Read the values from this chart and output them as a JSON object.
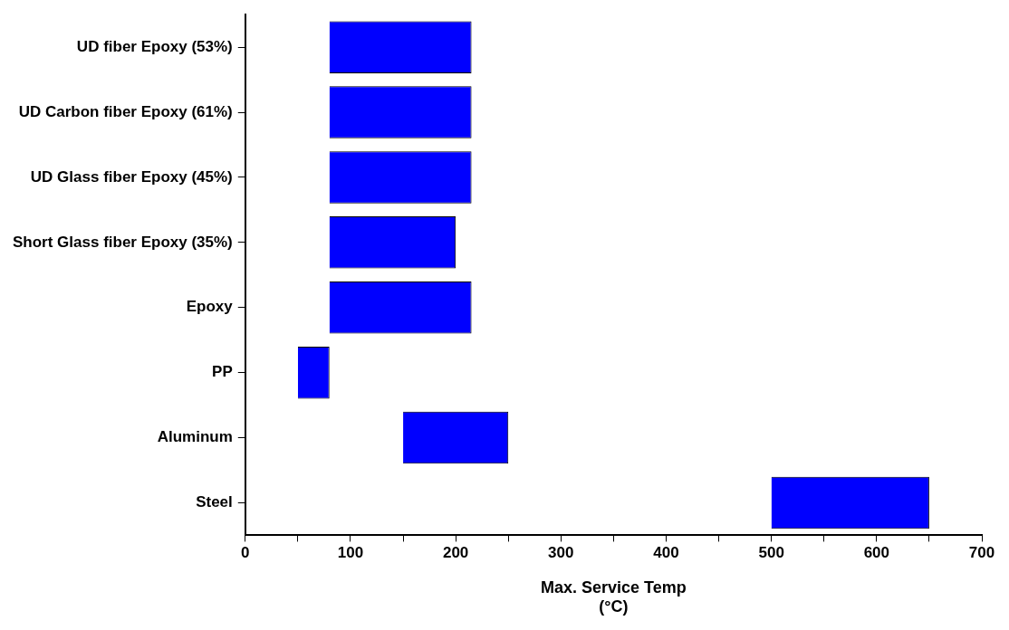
{
  "chart_data": {
    "type": "bar",
    "orientation": "horizontal",
    "xlabel": "Max. Service Temp\n(°C)",
    "categories": [
      "UD fiber Epoxy (53%)",
      "UD Carbon fiber Epoxy (61%)",
      "UD Glass fiber Epoxy (45%)",
      "Short Glass fiber Epoxy (35%)",
      "Epoxy",
      "PP",
      "Aluminum",
      "Steel"
    ],
    "base": [
      80,
      80,
      80,
      80,
      80,
      50,
      150,
      500
    ],
    "values": [
      135,
      135,
      135,
      120,
      135,
      30,
      100,
      150
    ],
    "color": "#0000ff",
    "xlim": [
      0,
      700
    ],
    "xticks": [
      0,
      {
        "value": 50,
        "label": null
      },
      100,
      {
        "value": 150,
        "label": null
      },
      200,
      {
        "value": 250,
        "label": null
      },
      300,
      {
        "value": 350,
        "label": null
      },
      400,
      {
        "value": 450,
        "label": null
      },
      500,
      {
        "value": 550,
        "label": null
      },
      600,
      {
        "value": 650,
        "label": null
      },
      700
    ],
    "grid": false,
    "legend": false
  }
}
